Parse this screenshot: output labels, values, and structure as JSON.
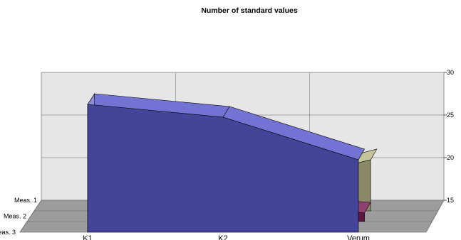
{
  "chart_data": {
    "type": "area",
    "variant": "3d-area",
    "title": "Number of standard values",
    "categories": [
      "K1",
      "K2",
      "Verum"
    ],
    "depth_labels": [
      "Meas. 1",
      "Meas. 2",
      "Meas. 3"
    ],
    "ylim": [
      15,
      30
    ],
    "y_ticks": [
      "15",
      "20",
      "25",
      "30"
    ],
    "grid": true,
    "series": [
      {
        "values": [
          30,
          28.5,
          23.5
        ],
        "color": "#5a5acb"
      },
      {
        "values": [
          28,
          17,
          16
        ],
        "color": "#7a2058"
      },
      {
        "values": [
          25,
          17,
          21
        ],
        "color": "#b8b88a"
      }
    ]
  }
}
